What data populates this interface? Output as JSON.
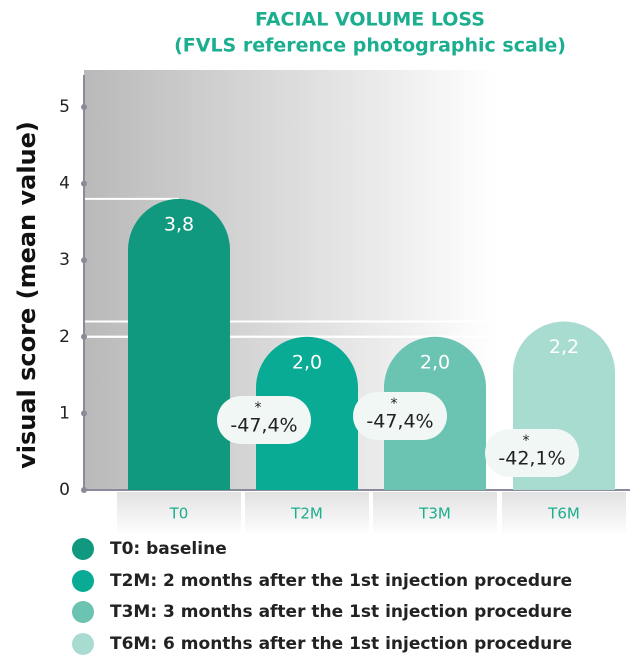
{
  "chart_data": {
    "type": "bar",
    "title": "FACIAL VOLUME LOSS",
    "subtitle": "(FVLS reference photographic scale)",
    "y_label": "visual score (mean value)",
    "categories": [
      "T0",
      "T2M",
      "T3M",
      "T6M"
    ],
    "values": [
      3.8,
      2.0,
      2.0,
      2.2
    ],
    "value_labels": [
      "3,8",
      "2,0",
      "2,0",
      "2,2"
    ],
    "colors": [
      "#10997f",
      "#0aab95",
      "#6bc3b1",
      "#a9dcd1"
    ],
    "ylim": [
      0,
      5
    ],
    "yticks": [
      0,
      1,
      2,
      3,
      4,
      5
    ],
    "annotations": [
      null,
      {
        "star": "*",
        "text": "-47,4%"
      },
      {
        "star": "*",
        "text": "-47,4%"
      },
      {
        "star": "*",
        "text": "-42,1%"
      }
    ],
    "legend": [
      "T0: baseline",
      "T2M: 2 months after the 1st injection procedure",
      "T3M: 3 months after the 1st injection procedure",
      "T6M: 6 months after the 1st injection procedure"
    ]
  }
}
